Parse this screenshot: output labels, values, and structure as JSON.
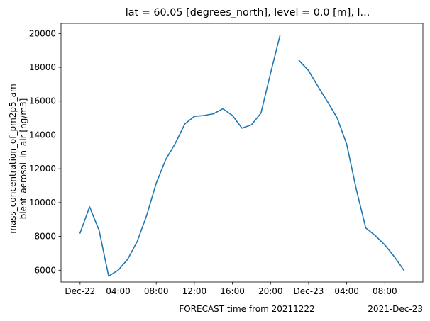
{
  "chart_data": {
    "type": "line",
    "title": "lat = 60.05 [degrees_north], level = 0.0 [m], l...",
    "xlabel": "FORECAST time from 20211222",
    "ylabel_lines": [
      "mass_concentration_of_pm2p5_am",
      "bient_aerosol_in_air [ng/m3]"
    ],
    "x_offset_label": "2021-Dec-23",
    "x_tick_labels": [
      "Dec-22",
      "04:00",
      "08:00",
      "12:00",
      "16:00",
      "20:00",
      "Dec-23",
      "04:00",
      "08:00"
    ],
    "x_tick_hours": [
      0,
      4,
      8,
      12,
      16,
      20,
      24,
      28,
      32
    ],
    "xlim_hours": [
      -2,
      36
    ],
    "y_ticks": [
      6000,
      8000,
      10000,
      12000,
      14000,
      16000,
      18000,
      20000
    ],
    "ylim": [
      5300,
      20600
    ],
    "grid": false,
    "line_color": "#1f77b4",
    "series": [
      {
        "segments": [
          {
            "x_hours": [
              0,
              1,
              2,
              3,
              4,
              5,
              6,
              7,
              8,
              9,
              10,
              11,
              12,
              13,
              14,
              15,
              16,
              17,
              18,
              19,
              20,
              21
            ],
            "values": [
              8200,
              9750,
              8350,
              5650,
              6000,
              6650,
              7700,
              9250,
              11150,
              12550,
              13500,
              14650,
              15100,
              15150,
              15250,
              15550,
              15150,
              14400,
              14600,
              15300,
              17650,
              19900
            ]
          },
          {
            "x_hours": [
              23,
              24,
              25,
              26,
              27,
              28,
              29,
              30,
              31,
              32,
              33,
              34
            ],
            "values": [
              18400,
              17800,
              16850,
              15950,
              15000,
              13450,
              10800,
              8500,
              8050,
              7500,
              6800,
              6000
            ]
          }
        ]
      }
    ]
  }
}
